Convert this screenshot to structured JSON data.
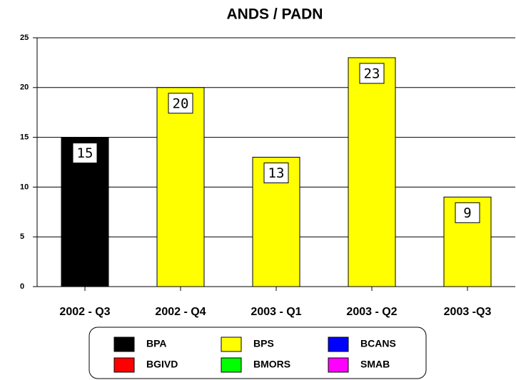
{
  "chart_data": {
    "type": "bar",
    "title": "ANDS / PADN",
    "categories": [
      "2002 - Q3",
      "2002 - Q4",
      "2003 - Q1",
      "2003 - Q2",
      "2003 -Q3"
    ],
    "series": [
      {
        "name": "BPA",
        "color": "#000000",
        "values": [
          15,
          null,
          null,
          null,
          null
        ]
      },
      {
        "name": "BPS",
        "color": "#ffff00",
        "values": [
          null,
          20,
          13,
          23,
          9
        ]
      },
      {
        "name": "BCANS",
        "color": "#0000ff",
        "values": [
          null,
          null,
          null,
          null,
          null
        ]
      },
      {
        "name": "BGIVD",
        "color": "#ff0000",
        "values": [
          null,
          null,
          null,
          null,
          null
        ]
      },
      {
        "name": "BMORS",
        "color": "#00ff00",
        "values": [
          null,
          null,
          null,
          null,
          null
        ]
      },
      {
        "name": "SMAB",
        "color": "#ff00ff",
        "values": [
          null,
          null,
          null,
          null,
          null
        ]
      }
    ],
    "ylim": [
      0,
      25
    ],
    "yticks": [
      0,
      5,
      10,
      15,
      20,
      25
    ],
    "grid": true,
    "legend": "bottom"
  }
}
